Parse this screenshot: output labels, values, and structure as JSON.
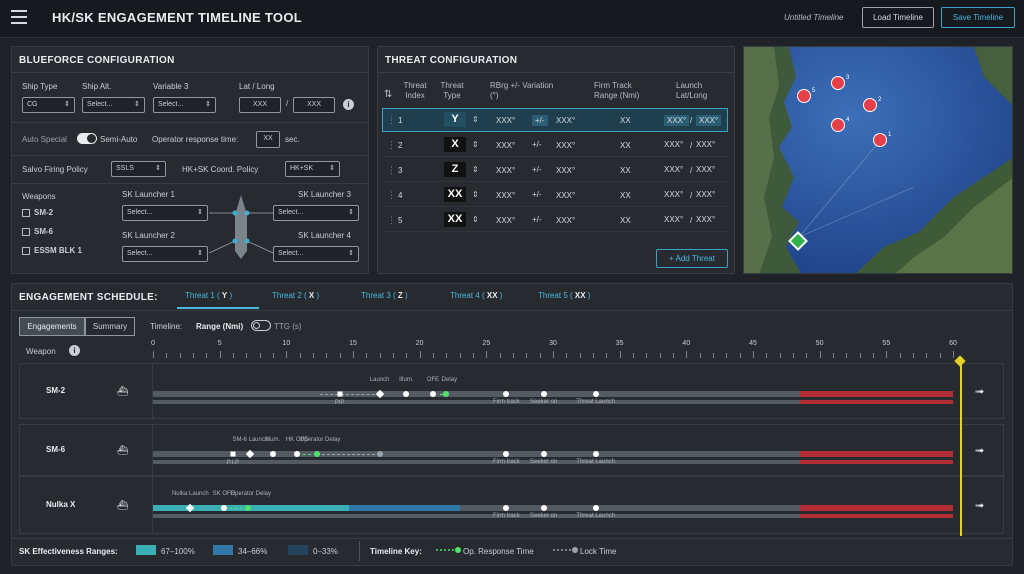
{
  "header": {
    "title": "HK/SK ENGAGEMENT TIMELINE TOOL",
    "file_name": "Untitled Timeline",
    "load_label": "Load Timeline",
    "save_label": "Save Timeline"
  },
  "blueforce": {
    "title": "BLUEFORCE CONFIGURATION",
    "ship_type_label": "Ship Type",
    "ship_type_value": "CG",
    "ship_alt_label": "Ship Alt.",
    "ship_alt_value": "Select...",
    "variable3_label": "Variable 3",
    "variable3_value": "Select...",
    "latlong_label": "Lat / Long",
    "lat_value": "XXX",
    "long_value": "XXX",
    "latlong_sep": "/",
    "auto_special_label": "Auto Special",
    "semi_auto_label": "Semi-Auto",
    "op_response_label": "Operator response time:",
    "op_response_value": "XX",
    "op_response_unit": "sec.",
    "salvo_label": "Salvo Firing Policy",
    "salvo_value": "SSLS",
    "coord_label": "HK+SK Coord. Policy",
    "coord_value": "HK+SK",
    "weapons_label": "Weapons",
    "weapons": [
      "SM-2",
      "SM-6",
      "ESSM BLK 1"
    ],
    "launchers": [
      {
        "label": "SK Launcher 1",
        "value": "Select..."
      },
      {
        "label": "SK Launcher 2",
        "value": "Select..."
      },
      {
        "label": "SK Launcher 3",
        "value": "Select..."
      },
      {
        "label": "SK Launcher 4",
        "value": "Select..."
      }
    ]
  },
  "threat": {
    "title": "THREAT CONFIGURATION",
    "headers": {
      "index": "Threat Index",
      "type": "Threat Type",
      "rbrg": "RBrg +/- Variation (°)",
      "firm": "Firm Track Range (Nmi)",
      "launch": "Launch Lat/Long"
    },
    "rows": [
      {
        "index": "1",
        "type": "Y",
        "a": "XXX°",
        "pm": "+/-",
        "b": "XXX°",
        "firm": "XX",
        "lat": "XXX°",
        "sep": "/",
        "lon": "XXX°"
      },
      {
        "index": "2",
        "type": "X",
        "a": "XXX°",
        "pm": "+/-",
        "b": "XXX°",
        "firm": "XX",
        "lat": "XXX°",
        "sep": "/",
        "lon": "XXX°"
      },
      {
        "index": "3",
        "type": "Z",
        "a": "XXX°",
        "pm": "+/-",
        "b": "XXX°",
        "firm": "XX",
        "lat": "XXX°",
        "sep": "/",
        "lon": "XXX°"
      },
      {
        "index": "4",
        "type": "XX",
        "a": "XXX°",
        "pm": "+/-",
        "b": "XXX°",
        "firm": "XX",
        "lat": "XXX°",
        "sep": "/",
        "lon": "XXX°"
      },
      {
        "index": "5",
        "type": "XX",
        "a": "XXX°",
        "pm": "+/-",
        "b": "XXX°",
        "firm": "XX",
        "lat": "XXX°",
        "sep": "/",
        "lon": "XXX°"
      }
    ],
    "add_label": "+ Add Threat"
  },
  "map": {
    "threat_markers": [
      "1",
      "2",
      "3",
      "4",
      "5"
    ],
    "ship_marker_color": "#2fb34a"
  },
  "schedule": {
    "title": "ENGAGEMENT SCHEDULE:",
    "tabs": [
      {
        "label": "Threat 1",
        "type": "Y"
      },
      {
        "label": "Threat 2",
        "type": "X"
      },
      {
        "label": "Threat 3",
        "type": "Z"
      },
      {
        "label": "Threat 4",
        "type": "XX"
      },
      {
        "label": "Threat 5",
        "type": "XX"
      }
    ],
    "view_engagements": "Engagements",
    "view_summary": "Summary",
    "timeline_label": "Timeline:",
    "range_label": "Range (Nmi)",
    "ttg_label": "TTG (s)",
    "weapon_label": "Weapon",
    "axis_ticks": [
      "0",
      "5",
      "10",
      "15",
      "20",
      "25",
      "30",
      "35",
      "40",
      "45",
      "50",
      "55",
      "60"
    ],
    "axis_max": 60,
    "cursor_value": 60.5,
    "lanes": [
      {
        "name": "SM-2",
        "labels": {
          "launch": "Launch",
          "illum": "Illum.",
          "ofe": "OFE",
          "delay": "Delay",
          "pip": "PIP",
          "firm": "Firm track",
          "seeker": "Seeker on",
          "threat_launch": "Threat Launch"
        },
        "red_start": 48.5,
        "launch": 17,
        "illum": 19,
        "ofe": 21,
        "delay": 22,
        "pip": 14,
        "firm": 26.5,
        "seeker": 29.3,
        "threat_launch": 33.2,
        "lock_from": 12.5,
        "lock_to": 17,
        "green_from": 21.5,
        "green_to": 22
      },
      {
        "name": "SM-6",
        "labels": {
          "launch": "SM-6 Launch",
          "illum": "Illum.",
          "ofe": "HK OFE",
          "delay": "Operator Delay",
          "pip": "P.I.P",
          "firm": "Firm track",
          "seeker": "Seeker on",
          "threat_launch": "Threat Launch"
        },
        "red_start": 48.5,
        "launch": 7.3,
        "illum": 9,
        "ofe": 10.8,
        "delay": 12.3,
        "pip": 6,
        "firm": 26.5,
        "seeker": 29.3,
        "threat_launch": 33.2,
        "lock_from": 12.3,
        "lock_to": 17,
        "green_from": 10.8,
        "green_to": 12.3
      },
      {
        "name": "Nulka X",
        "labels": {
          "launch": "Nulka Launch",
          "ofe": "SK OFE",
          "delay": "Operator Delay",
          "firm": "Firm track",
          "seeker": "Seeker on",
          "threat_launch": "Threat Launch"
        },
        "red_start": 48.5,
        "launch": 2.8,
        "ofe": 5.3,
        "delay": 7.1,
        "firm": 26.5,
        "seeker": 29.3,
        "threat_launch": 33.2,
        "teal_to": 14.7,
        "blue_to": 23,
        "green_from": 5.3,
        "green_to": 7.1
      }
    ],
    "legend": {
      "ranges_label": "SK Effectiveness Ranges:",
      "r1": "67–100%",
      "r2": "34–66%",
      "r3": "0–33%",
      "key_label": "Timeline Key:",
      "op_response": "Op. Response Time",
      "lock_time": "Lock Time"
    },
    "colors": {
      "teal": "#3ab0b4",
      "blue": "#2f78a8",
      "navy": "#24445e",
      "red": "#b32e34",
      "grey": "#555b62",
      "cursor": "#e6d12a",
      "green": "#4ee36b"
    }
  }
}
